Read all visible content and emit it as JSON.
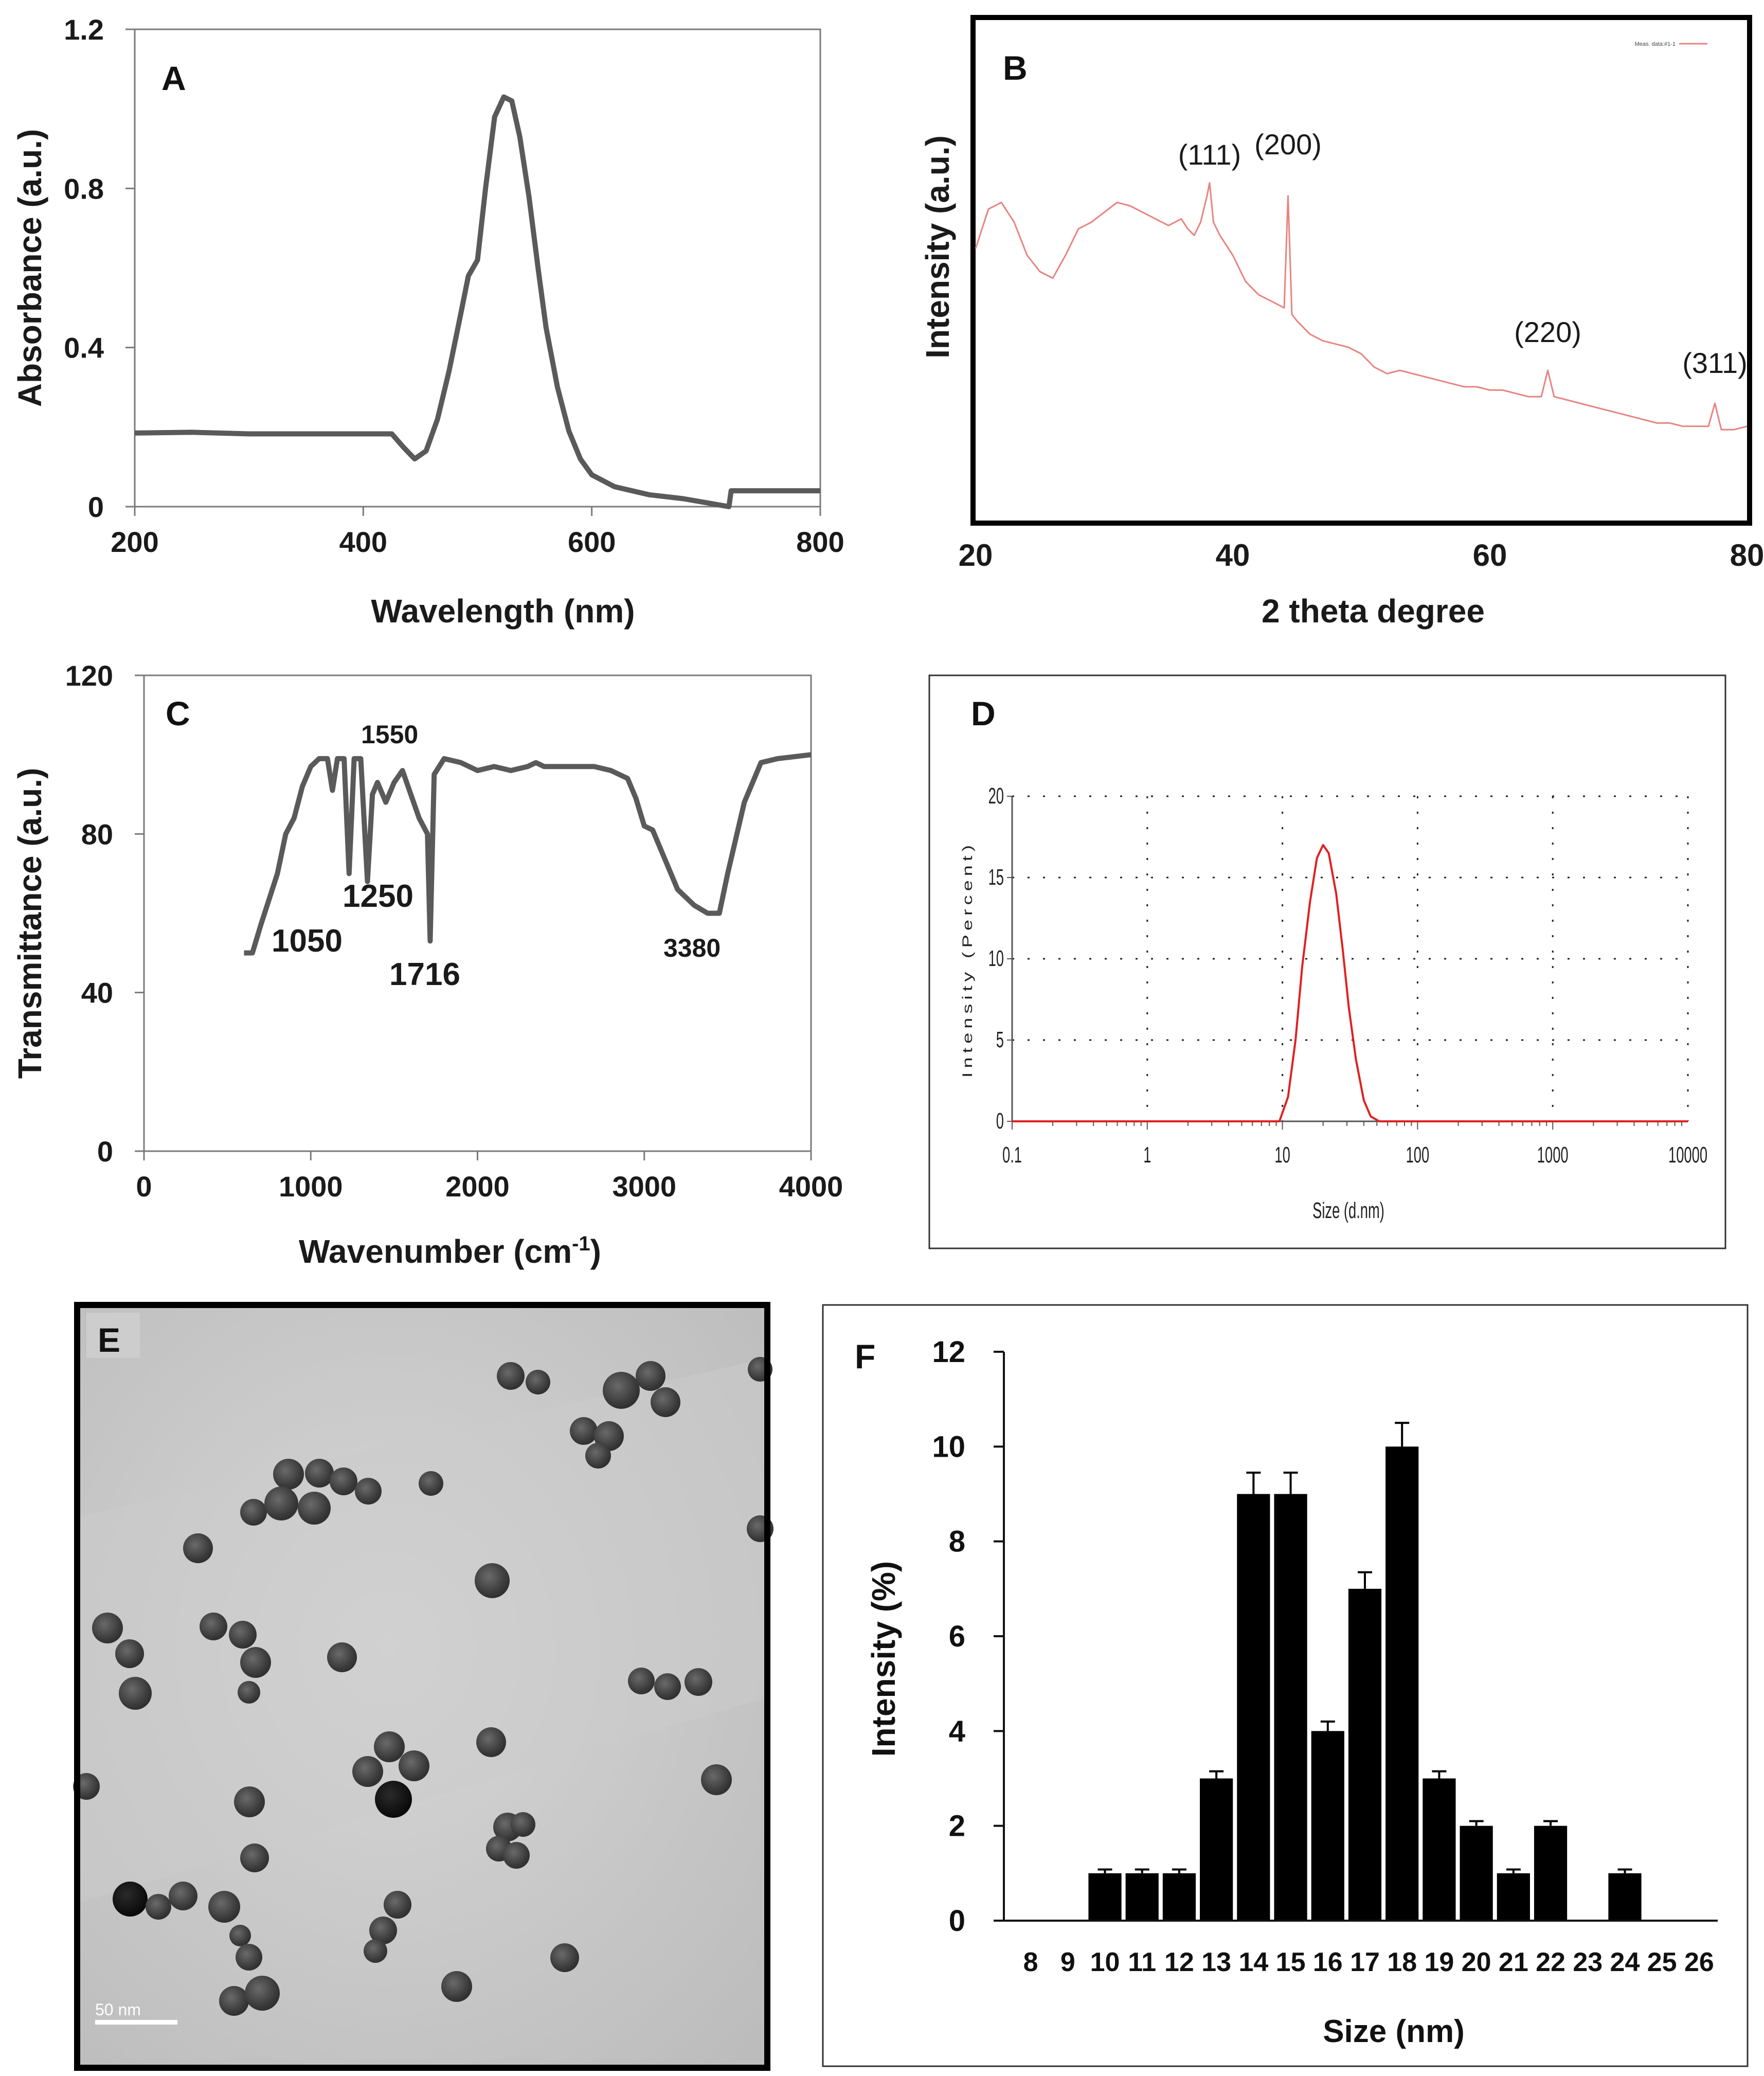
{
  "chart_data": [
    {
      "panel": "A",
      "type": "line",
      "xlabel": "Wavelength (nm)",
      "ylabel": "Absorbance (a.u.)",
      "xlim": [
        200,
        800
      ],
      "ylim": [
        0,
        1.2
      ],
      "xticks": [
        "200",
        "400",
        "600",
        "800"
      ],
      "yticks": [
        "0",
        "0.4",
        "0.8",
        "1.2"
      ],
      "line_color": "#5a5a5a",
      "x": [
        200,
        250,
        300,
        350,
        400,
        425,
        435,
        445,
        455,
        465,
        475,
        485,
        492,
        500,
        507,
        515,
        523,
        530,
        537,
        545,
        553,
        560,
        570,
        580,
        590,
        600,
        620,
        650,
        680,
        710,
        720,
        722,
        730,
        760,
        800
      ],
      "y": [
        0.185,
        0.187,
        0.183,
        0.183,
        0.183,
        0.183,
        0.15,
        0.12,
        0.14,
        0.22,
        0.34,
        0.48,
        0.58,
        0.62,
        0.8,
        0.98,
        1.03,
        1.02,
        0.93,
        0.78,
        0.6,
        0.45,
        0.3,
        0.19,
        0.12,
        0.08,
        0.05,
        0.03,
        0.02,
        0.005,
        0.0,
        0.04,
        0.04,
        0.04,
        0.04
      ]
    },
    {
      "panel": "B",
      "type": "line",
      "xlabel": "2 theta degree",
      "ylabel": "Intensity (a.u.)",
      "xlim": [
        20,
        80
      ],
      "xticks": [
        "20",
        "40",
        "60",
        "80"
      ],
      "legend_label": "Meas. data:#1-1",
      "line_color": "#e8837f",
      "peak_labels": [
        {
          "label": "(111)",
          "x": 38.2
        },
        {
          "label": "(200)",
          "x": 44.3
        },
        {
          "label": "(220)",
          "x": 64.5
        },
        {
          "label": "(311)",
          "x": 77.5
        }
      ],
      "x": [
        20,
        21,
        22,
        23,
        24,
        25,
        26,
        27,
        28,
        29,
        30,
        31,
        32,
        33,
        34,
        35,
        36,
        36.5,
        37,
        37.5,
        38,
        38.2,
        38.5,
        39,
        40,
        41,
        42,
        43,
        44,
        44.3,
        44.6,
        45,
        46,
        47,
        48,
        49,
        50,
        51,
        52,
        53,
        54,
        55,
        56,
        57,
        58,
        59,
        60,
        61,
        62,
        63,
        64,
        64.5,
        65,
        66,
        67,
        68,
        69,
        70,
        71,
        72,
        73,
        74,
        75,
        76,
        77,
        77.5,
        78,
        79,
        80
      ],
      "y": [
        0.62,
        0.74,
        0.76,
        0.7,
        0.6,
        0.55,
        0.53,
        0.6,
        0.68,
        0.7,
        0.73,
        0.76,
        0.75,
        0.73,
        0.71,
        0.69,
        0.71,
        0.68,
        0.66,
        0.7,
        0.78,
        0.82,
        0.7,
        0.66,
        0.6,
        0.52,
        0.48,
        0.46,
        0.44,
        0.78,
        0.42,
        0.4,
        0.36,
        0.34,
        0.33,
        0.32,
        0.3,
        0.26,
        0.24,
        0.25,
        0.24,
        0.23,
        0.22,
        0.21,
        0.2,
        0.2,
        0.19,
        0.19,
        0.18,
        0.17,
        0.17,
        0.25,
        0.17,
        0.16,
        0.15,
        0.14,
        0.13,
        0.12,
        0.11,
        0.1,
        0.09,
        0.09,
        0.08,
        0.08,
        0.08,
        0.15,
        0.07,
        0.07,
        0.08
      ]
    },
    {
      "panel": "C",
      "type": "line",
      "xlabel": "Wavenumber (cm-1)",
      "xlabel_main": "Wavenumber (cm",
      "xlabel_sup": "-1",
      "xlabel_close": ")",
      "ylabel": "Transmittance (a.u.)",
      "xlim": [
        0,
        4000
      ],
      "ylim": [
        0,
        120
      ],
      "xticks": [
        "0",
        "1000",
        "2000",
        "3000",
        "4000"
      ],
      "yticks": [
        "0",
        "40",
        "80",
        "120"
      ],
      "line_color": "#5a5a5a",
      "peak_labels": [
        {
          "label": "1050",
          "x": 1050
        },
        {
          "label": "1250",
          "x": 1250
        },
        {
          "label": "1550",
          "x": 1550
        },
        {
          "label": "1716",
          "x": 1716
        },
        {
          "label": "3380",
          "x": 3380
        }
      ],
      "x": [
        600,
        650,
        700,
        800,
        850,
        900,
        950,
        1000,
        1050,
        1100,
        1130,
        1160,
        1200,
        1230,
        1260,
        1300,
        1340,
        1370,
        1400,
        1450,
        1500,
        1550,
        1600,
        1650,
        1700,
        1716,
        1740,
        1800,
        1900,
        2000,
        2100,
        2200,
        2300,
        2350,
        2400,
        2500,
        2600,
        2700,
        2800,
        2900,
        2950,
        3000,
        3050,
        3100,
        3200,
        3300,
        3380,
        3450,
        3500,
        3600,
        3700,
        3800,
        4000
      ],
      "y": [
        50,
        50,
        57,
        70,
        80,
        84,
        92,
        97,
        99,
        99,
        91,
        99,
        99,
        70,
        99,
        99,
        68,
        90,
        93,
        88,
        93,
        96,
        90,
        84,
        80,
        53,
        95,
        99,
        98,
        96,
        97,
        96,
        97,
        98,
        97,
        97,
        97,
        97,
        96,
        94,
        89,
        82,
        81,
        76,
        66,
        62,
        60,
        60,
        70,
        88,
        98,
        99,
        100
      ]
    },
    {
      "panel": "D",
      "type": "line",
      "xscale": "log",
      "xlabel": "Size (d.nm)",
      "ylabel": "Intensity (Percent)",
      "xlim": [
        0.1,
        10000
      ],
      "ylim": [
        0,
        20
      ],
      "xticks": [
        "0.1",
        "1",
        "10",
        "100",
        "1000",
        "10000"
      ],
      "yticks": [
        "0",
        "5",
        "10",
        "15",
        "20"
      ],
      "grid": true,
      "line_color": "#e02020",
      "x": [
        0.1,
        1,
        9.5,
        11,
        12.5,
        14,
        16,
        18,
        20,
        22,
        25,
        28,
        31,
        35,
        40,
        45,
        52,
        100,
        1000,
        10000
      ],
      "y": [
        0,
        0,
        0,
        1.5,
        5,
        9.5,
        13.5,
        16.2,
        17,
        16.5,
        14,
        10.5,
        7,
        3.8,
        1.3,
        0.3,
        0,
        0,
        0,
        0
      ]
    },
    {
      "panel": "F",
      "type": "bar",
      "xlabel": "Size (nm)",
      "ylabel": "Intensity (%)",
      "ylim": [
        0,
        12
      ],
      "yticks": [
        "0",
        "2",
        "4",
        "6",
        "8",
        "10",
        "12"
      ],
      "bar_color": "#000000",
      "categories": [
        "8",
        "9",
        "10",
        "11",
        "12",
        "13",
        "14",
        "15",
        "16",
        "17",
        "18",
        "19",
        "20",
        "21",
        "22",
        "23",
        "24",
        "25",
        "26"
      ],
      "values": [
        0,
        0,
        1,
        1,
        1,
        3,
        9,
        9,
        4,
        7,
        10,
        3,
        2,
        1,
        2,
        0,
        1,
        0,
        0
      ],
      "errors": [
        0,
        0,
        0.08,
        0.08,
        0.08,
        0.15,
        0.45,
        0.45,
        0.2,
        0.35,
        0.5,
        0.15,
        0.1,
        0.08,
        0.1,
        0,
        0.08,
        0,
        0
      ]
    }
  ],
  "panels": {
    "A": {
      "label": "A"
    },
    "B": {
      "label": "B"
    },
    "C": {
      "label": "C"
    },
    "D": {
      "label": "D"
    },
    "E": {
      "label": "E",
      "scale_bar": "50 nm"
    },
    "F": {
      "label": "F"
    }
  }
}
